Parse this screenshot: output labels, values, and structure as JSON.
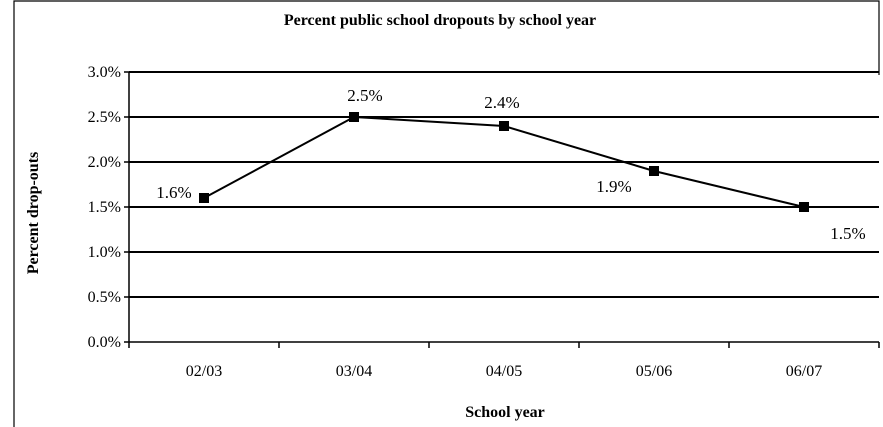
{
  "chart_data": {
    "type": "line",
    "title": "Percent public school dropouts by school year",
    "xlabel": "School year",
    "ylabel": "Percent drop-outs",
    "categories": [
      "02/03",
      "03/04",
      "04/05",
      "05/06",
      "06/07"
    ],
    "series": [
      {
        "values": [
          1.6,
          2.5,
          2.4,
          1.9,
          1.5
        ]
      }
    ],
    "data_labels": [
      "1.6%",
      "2.5%",
      "2.4%",
      "1.9%",
      "1.5%"
    ],
    "y_ticks": [
      0,
      0.5,
      1.0,
      1.5,
      2.0,
      2.5,
      3.0
    ],
    "y_tick_labels": [
      "0.0%",
      "0.5%",
      "1.0%",
      "1.5%",
      "2.0%",
      "2.5%",
      "3.0%"
    ],
    "ylim": [
      0,
      3.0
    ],
    "grid": true,
    "legend": "none",
    "colors": {
      "line": "#000000",
      "marker": "#000000",
      "grid": "#000000"
    }
  }
}
